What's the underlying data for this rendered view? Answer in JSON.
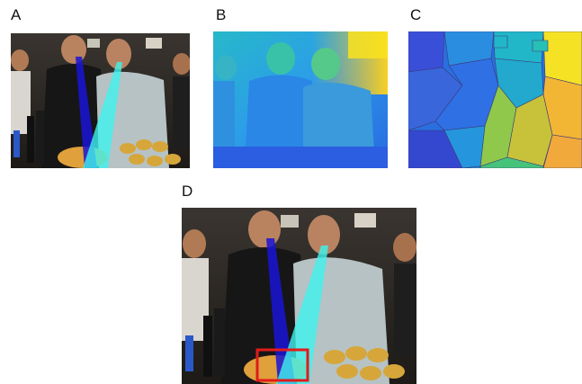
{
  "figure": {
    "panels": [
      {
        "label": "A",
        "content": "photo-with-gaze-cones"
      },
      {
        "label": "B",
        "content": "depth-map"
      },
      {
        "label": "C",
        "content": "segmentation-map"
      },
      {
        "label": "D",
        "content": "photo-with-gaze-cones-and-target-box"
      }
    ],
    "colors": {
      "gaze_cone_dark": "#1a14d6",
      "gaze_cone_light": "#3ff2ef",
      "target_box": "#e21b1b",
      "depth_near": "#f9e21f",
      "depth_far": "#2c68e6"
    }
  }
}
